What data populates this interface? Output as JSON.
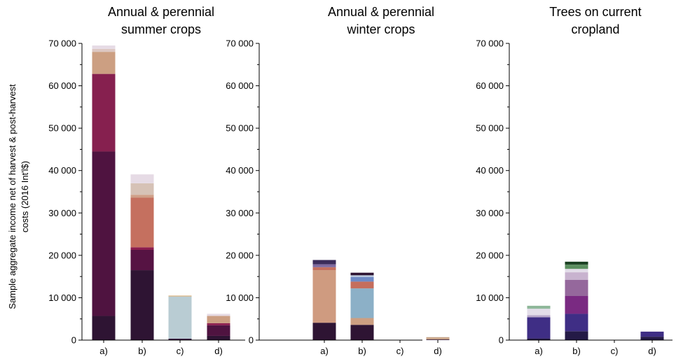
{
  "chart_data": {
    "type": "bar",
    "stacked": true,
    "ylabel_lines": [
      "Sample aggregate income net of harvest & post-harvest",
      "costs (2016 Int'l$)"
    ],
    "ylim": [
      0,
      70000
    ],
    "yticks": [
      0,
      10000,
      20000,
      30000,
      40000,
      50000,
      60000,
      70000
    ],
    "ytick_labels": [
      "0",
      "10 000",
      "20 000",
      "30 000",
      "40 000",
      "50 000",
      "60 000",
      "70 000"
    ],
    "categories": [
      "a)",
      "b)",
      "c)",
      "d)"
    ],
    "panels": [
      {
        "title_lines": [
          "Annual & perennial",
          "summer crops"
        ],
        "bars": [
          {
            "segments": [
              {
                "value": 5700,
                "color": "#2e1433"
              },
              {
                "value": 38800,
                "color": "#4f1340"
              },
              {
                "value": 18300,
                "color": "#86204f"
              },
              {
                "value": 5200,
                "color": "#cc9f82"
              },
              {
                "value": 700,
                "color": "#ddc7c2"
              },
              {
                "value": 800,
                "color": "#e6dbe5"
              }
            ]
          },
          {
            "segments": [
              {
                "value": 16500,
                "color": "#2e1433"
              },
              {
                "value": 4800,
                "color": "#561343"
              },
              {
                "value": 600,
                "color": "#8c1d4e"
              },
              {
                "value": 11700,
                "color": "#c5705f"
              },
              {
                "value": 700,
                "color": "#cfa088"
              },
              {
                "value": 2700,
                "color": "#d6c2b6"
              },
              {
                "value": 2100,
                "color": "#e6dbe5"
              }
            ]
          },
          {
            "segments": [
              {
                "value": 350,
                "color": "#3c1f45"
              },
              {
                "value": 9950,
                "color": "#b9ccd3"
              },
              {
                "value": 200,
                "color": "#d8b07a"
              }
            ]
          },
          {
            "segments": [
              {
                "value": 1000,
                "color": "#2e1433"
              },
              {
                "value": 2500,
                "color": "#4f1340"
              },
              {
                "value": 500,
                "color": "#8c1d4e"
              },
              {
                "value": 1700,
                "color": "#cc9f82"
              },
              {
                "value": 500,
                "color": "#e6dbe5"
              }
            ]
          }
        ]
      },
      {
        "title_lines": [
          "Annual & perennial",
          "winter crops"
        ],
        "bars": [
          {
            "segments": [
              {
                "value": 4100,
                "color": "#2e1433"
              },
              {
                "value": 12400,
                "color": "#cf9b80"
              },
              {
                "value": 700,
                "color": "#c5705f"
              },
              {
                "value": 700,
                "color": "#7f6aa0"
              },
              {
                "value": 1000,
                "color": "#3b2c5a"
              }
            ]
          },
          {
            "segments": [
              {
                "value": 3600,
                "color": "#2e1433"
              },
              {
                "value": 1600,
                "color": "#cc9f82"
              },
              {
                "value": 7000,
                "color": "#8cb0c7"
              },
              {
                "value": 1600,
                "color": "#c56e5d"
              },
              {
                "value": 1100,
                "color": "#6e8ac6"
              },
              {
                "value": 400,
                "color": "#b8c6dd"
              },
              {
                "value": 600,
                "color": "#2e1433"
              }
            ]
          },
          {
            "segments": []
          },
          {
            "segments": [
              {
                "value": 150,
                "color": "#2e1433"
              },
              {
                "value": 550,
                "color": "#c9a68b"
              }
            ]
          }
        ]
      },
      {
        "title_lines": [
          "Trees on current",
          "cropland"
        ],
        "bars": [
          {
            "segments": [
              {
                "value": 400,
                "color": "#241a46"
              },
              {
                "value": 5000,
                "color": "#3f2e85"
              },
              {
                "value": 500,
                "color": "#b8a8c9"
              },
              {
                "value": 1500,
                "color": "#e3dde9"
              },
              {
                "value": 700,
                "color": "#8fb89a"
              }
            ]
          },
          {
            "segments": [
              {
                "value": 2100,
                "color": "#241a46"
              },
              {
                "value": 4100,
                "color": "#3f2e85"
              },
              {
                "value": 4200,
                "color": "#7a2a82"
              },
              {
                "value": 3800,
                "color": "#95689c"
              },
              {
                "value": 1800,
                "color": "#c8b3cf"
              },
              {
                "value": 800,
                "color": "#e3dde9"
              },
              {
                "value": 1000,
                "color": "#5b8f5f"
              },
              {
                "value": 700,
                "color": "#1d4224"
              }
            ]
          },
          {
            "segments": []
          },
          {
            "segments": [
              {
                "value": 800,
                "color": "#241a46"
              },
              {
                "value": 1200,
                "color": "#3f2e85"
              }
            ]
          }
        ]
      }
    ]
  }
}
